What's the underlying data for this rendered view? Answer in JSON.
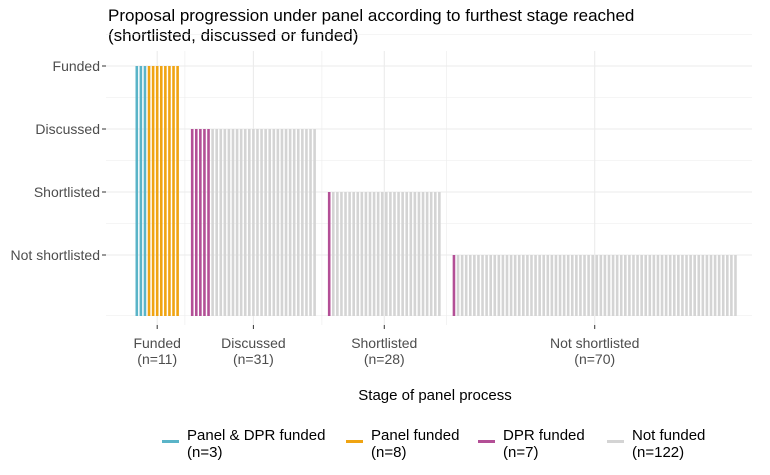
{
  "chart_data": {
    "type": "bar",
    "title": "Proposal progression under panel according to furthest stage reached",
    "subtitle": "(shortlisted, discussed or funded)",
    "xlabel": "Stage of panel process",
    "ylabel": "",
    "y_categories": [
      "Funded",
      "Discussed",
      "Shortlisted",
      "Not shortlisted"
    ],
    "grid": true,
    "legend_position": "bottom",
    "colors": {
      "panel_dpr_funded": "#5ab4c8",
      "panel_funded": "#f0a412",
      "dpr_funded": "#b34f96",
      "not_funded": "#d4d4d4",
      "grid": "#ebebeb",
      "axis_text": "#4d4d4d"
    },
    "groups": [
      {
        "label": "Funded",
        "n_label": "(n=11)",
        "level": "Funded",
        "counts": {
          "panel_dpr_funded": 3,
          "panel_funded": 8,
          "dpr_funded": 0,
          "not_funded": 0
        }
      },
      {
        "label": "Discussed",
        "n_label": "(n=31)",
        "level": "Discussed",
        "counts": {
          "panel_dpr_funded": 0,
          "panel_funded": 0,
          "dpr_funded": 5,
          "not_funded": 26
        }
      },
      {
        "label": "Shortlisted",
        "n_label": "(n=28)",
        "level": "Shortlisted",
        "counts": {
          "panel_dpr_funded": 0,
          "panel_funded": 0,
          "dpr_funded": 1,
          "not_funded": 27
        }
      },
      {
        "label": "Not shortlisted",
        "n_label": "(n=70)",
        "level": "Not shortlisted",
        "counts": {
          "panel_dpr_funded": 0,
          "panel_funded": 0,
          "dpr_funded": 1,
          "not_funded": 69
        }
      }
    ],
    "legend": [
      {
        "key": "panel_dpr_funded",
        "label": "Panel & DPR funded",
        "n_label": "(n=3)"
      },
      {
        "key": "panel_funded",
        "label": "Panel funded",
        "n_label": "(n=8)"
      },
      {
        "key": "dpr_funded",
        "label": "DPR funded",
        "n_label": "(n=7)"
      },
      {
        "key": "not_funded",
        "label": "Not funded",
        "n_label": "(n=122)"
      }
    ]
  }
}
